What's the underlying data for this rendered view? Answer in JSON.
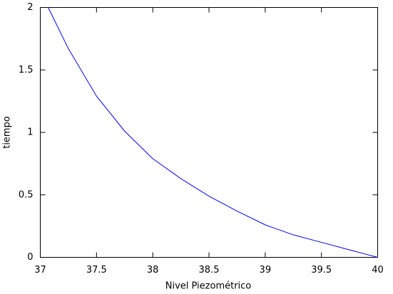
{
  "chart_data": {
    "type": "line",
    "x_label": "Nivel Piezométrico",
    "y_label": "tiempo",
    "x": [
      37.07,
      37.25,
      37.5,
      37.75,
      38,
      38.25,
      38.5,
      38.75,
      39,
      39.25,
      39.5,
      39.75,
      40
    ],
    "series": [
      {
        "color": "#0000ff",
        "values": [
          2,
          1.67,
          1.29,
          1.01,
          0.79,
          0.63,
          0.49,
          0.37,
          0.26,
          0.18,
          0.12,
          0.06,
          0
        ]
      }
    ],
    "xlim": [
      37,
      40
    ],
    "xticks": [
      37,
      37.5,
      38,
      38.5,
      39,
      39.5,
      40
    ],
    "ylim": [
      0,
      2
    ],
    "yticks": [
      0,
      0.5,
      1,
      1.5,
      2
    ],
    "grid": false
  }
}
